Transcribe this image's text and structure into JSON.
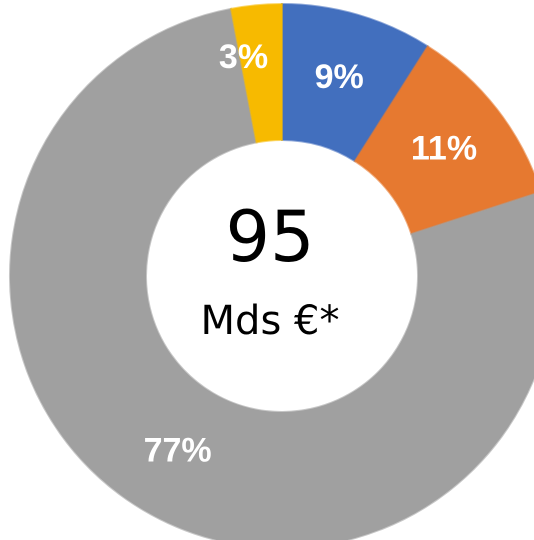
{
  "chart_data": {
    "type": "donut",
    "categories": [
      null,
      null,
      null,
      null
    ],
    "values": [
      9,
      11,
      77,
      3
    ],
    "value_labels": [
      "9%",
      "11%",
      "77%",
      "3%"
    ],
    "colors": [
      "#4472c4",
      "#ed7d31",
      "#a5a5a5",
      "#ffc000"
    ],
    "center_text": [
      "95",
      "Mds €*"
    ]
  }
}
